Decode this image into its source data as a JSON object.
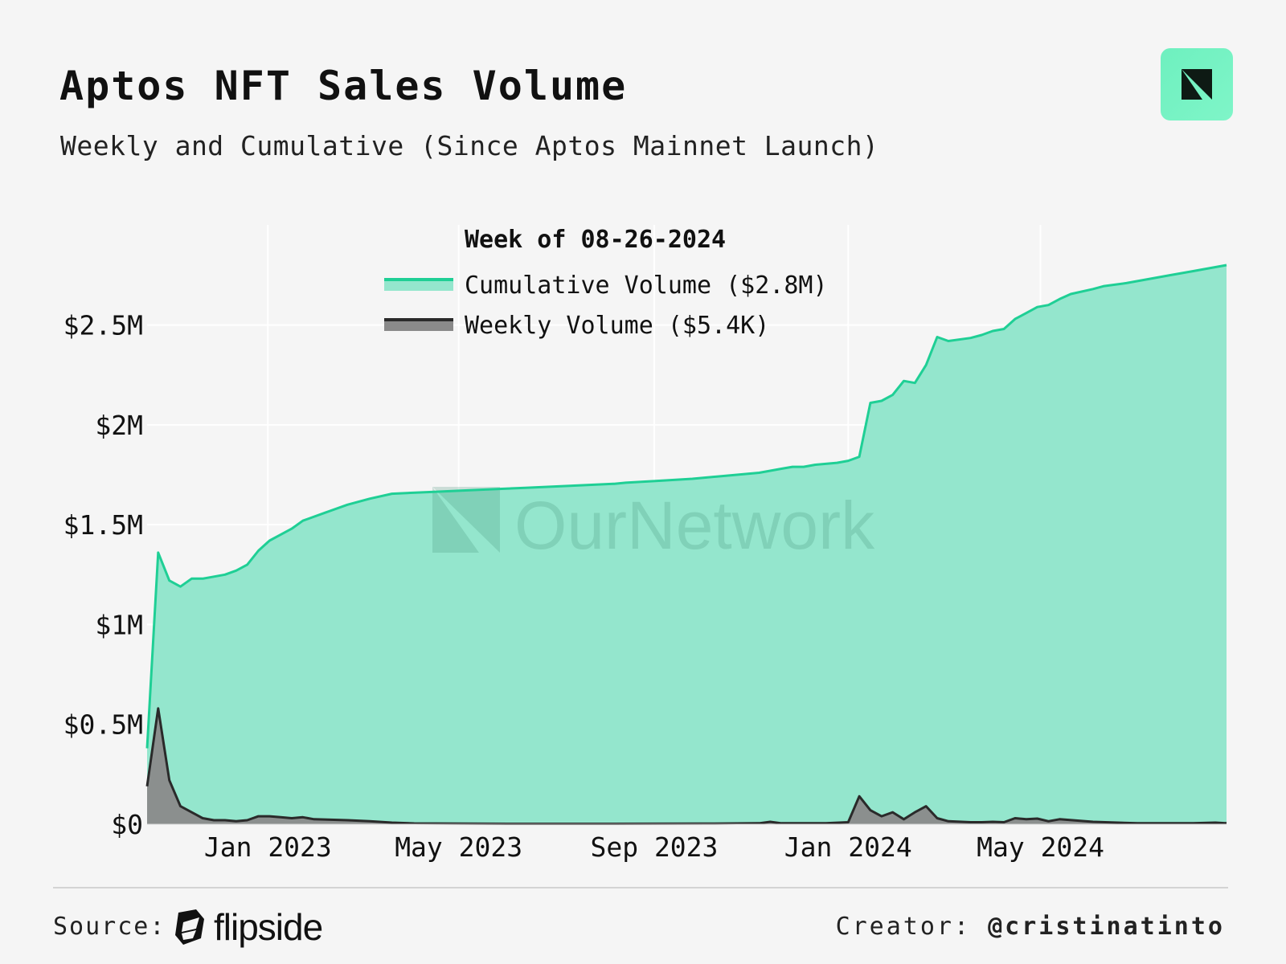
{
  "header": {
    "title": "Aptos NFT Sales Volume",
    "subtitle": "Weekly and Cumulative (Since Aptos Mainnet Launch)"
  },
  "logo": {
    "icon": "ournetwork-logo-icon",
    "color": "#6ef0bf"
  },
  "watermark": "OurNetwork",
  "footer": {
    "source_label": "Source:",
    "source_name": "flipside",
    "creator_label": "Creator:",
    "creator_handle": "@cristinatinto"
  },
  "chart_data": {
    "type": "area",
    "legend_title": "Week of 08-26-2024",
    "legend_position": "top-center",
    "grid": true,
    "x_start": "2022-10-17",
    "x_end": "2024-08-26",
    "xticks": [
      {
        "date": "2023-01-01",
        "label": "Jan 2023"
      },
      {
        "date": "2023-05-01",
        "label": "May 2023"
      },
      {
        "date": "2023-09-01",
        "label": "Sep 2023"
      },
      {
        "date": "2024-01-01",
        "label": "Jan 2024"
      },
      {
        "date": "2024-05-01",
        "label": "May 2024"
      }
    ],
    "yticks": [
      {
        "value": 0,
        "label": "$0"
      },
      {
        "value": 0.5,
        "label": "$0.5M"
      },
      {
        "value": 1,
        "label": "$1M"
      },
      {
        "value": 1.5,
        "label": "$1.5M"
      },
      {
        "value": 2,
        "label": "$2M"
      },
      {
        "value": 2.5,
        "label": "$2.5M"
      }
    ],
    "ylim": [
      0,
      2.95
    ],
    "y_unit": "$M",
    "series": [
      {
        "name": "Cumulative Volume",
        "legend_label": "Cumulative Volume ($2.8M)",
        "line_color": "#1fcf95",
        "fill_color": "#94e6cd",
        "points": [
          [
            "2022-10-17",
            0.38
          ],
          [
            "2022-10-24",
            1.36
          ],
          [
            "2022-10-31",
            1.22
          ],
          [
            "2022-11-07",
            1.19
          ],
          [
            "2022-11-14",
            1.23
          ],
          [
            "2022-11-21",
            1.23
          ],
          [
            "2022-11-28",
            1.24
          ],
          [
            "2022-12-05",
            1.25
          ],
          [
            "2022-12-12",
            1.27
          ],
          [
            "2022-12-19",
            1.3
          ],
          [
            "2022-12-26",
            1.37
          ],
          [
            "2023-01-02",
            1.42
          ],
          [
            "2023-01-09",
            1.45
          ],
          [
            "2023-01-16",
            1.48
          ],
          [
            "2023-01-23",
            1.52
          ],
          [
            "2023-02-06",
            1.56
          ],
          [
            "2023-02-20",
            1.6
          ],
          [
            "2023-03-06",
            1.63
          ],
          [
            "2023-03-20",
            1.655
          ],
          [
            "2023-04-17",
            1.665
          ],
          [
            "2023-05-15",
            1.675
          ],
          [
            "2023-06-12",
            1.685
          ],
          [
            "2023-07-10",
            1.695
          ],
          [
            "2023-08-07",
            1.705
          ],
          [
            "2023-08-14",
            1.71
          ],
          [
            "2023-09-04",
            1.72
          ],
          [
            "2023-09-25",
            1.73
          ],
          [
            "2023-10-16",
            1.745
          ],
          [
            "2023-11-06",
            1.76
          ],
          [
            "2023-11-20",
            1.78
          ],
          [
            "2023-11-27",
            1.79
          ],
          [
            "2023-12-04",
            1.79
          ],
          [
            "2023-12-11",
            1.8
          ],
          [
            "2023-12-25",
            1.81
          ],
          [
            "2024-01-01",
            1.82
          ],
          [
            "2024-01-08",
            1.84
          ],
          [
            "2024-01-15",
            2.11
          ],
          [
            "2024-01-22",
            2.12
          ],
          [
            "2024-01-29",
            2.15
          ],
          [
            "2024-02-05",
            2.22
          ],
          [
            "2024-02-12",
            2.21
          ],
          [
            "2024-02-19",
            2.3
          ],
          [
            "2024-02-26",
            2.44
          ],
          [
            "2024-03-04",
            2.42
          ],
          [
            "2024-03-18",
            2.435
          ],
          [
            "2024-03-25",
            2.45
          ],
          [
            "2024-04-01",
            2.47
          ],
          [
            "2024-04-08",
            2.48
          ],
          [
            "2024-04-15",
            2.53
          ],
          [
            "2024-04-22",
            2.56
          ],
          [
            "2024-04-29",
            2.59
          ],
          [
            "2024-05-06",
            2.6
          ],
          [
            "2024-05-13",
            2.63
          ],
          [
            "2024-05-20",
            2.655
          ],
          [
            "2024-06-03",
            2.68
          ],
          [
            "2024-06-10",
            2.695
          ],
          [
            "2024-06-24",
            2.71
          ],
          [
            "2024-07-08",
            2.73
          ],
          [
            "2024-07-22",
            2.75
          ],
          [
            "2024-08-05",
            2.77
          ],
          [
            "2024-08-12",
            2.78
          ],
          [
            "2024-08-19",
            2.79
          ],
          [
            "2024-08-26",
            2.8
          ]
        ]
      },
      {
        "name": "Weekly Volume",
        "legend_label": "Weekly Volume ($5.4K)",
        "line_color": "#2a2a2a",
        "fill_color": "#8a8a8a",
        "points": [
          [
            "2022-10-17",
            0.19
          ],
          [
            "2022-10-24",
            0.58
          ],
          [
            "2022-10-31",
            0.22
          ],
          [
            "2022-11-07",
            0.09
          ],
          [
            "2022-11-14",
            0.06
          ],
          [
            "2022-11-21",
            0.03
          ],
          [
            "2022-11-28",
            0.02
          ],
          [
            "2022-12-05",
            0.02
          ],
          [
            "2022-12-12",
            0.015
          ],
          [
            "2022-12-19",
            0.02
          ],
          [
            "2022-12-26",
            0.04
          ],
          [
            "2023-01-02",
            0.04
          ],
          [
            "2023-01-09",
            0.035
          ],
          [
            "2023-01-16",
            0.03
          ],
          [
            "2023-01-23",
            0.035
          ],
          [
            "2023-01-30",
            0.025
          ],
          [
            "2023-02-20",
            0.02
          ],
          [
            "2023-03-06",
            0.015
          ],
          [
            "2023-03-20",
            0.008
          ],
          [
            "2023-04-03",
            0.004
          ],
          [
            "2023-05-01",
            0.003
          ],
          [
            "2023-06-01",
            0.002
          ],
          [
            "2023-08-01",
            0.002
          ],
          [
            "2023-10-02",
            0.003
          ],
          [
            "2023-11-06",
            0.005
          ],
          [
            "2023-11-13",
            0.012
          ],
          [
            "2023-11-20",
            0.005
          ],
          [
            "2023-12-18",
            0.005
          ],
          [
            "2024-01-01",
            0.01
          ],
          [
            "2024-01-08",
            0.14
          ],
          [
            "2024-01-15",
            0.07
          ],
          [
            "2024-01-22",
            0.04
          ],
          [
            "2024-01-29",
            0.06
          ],
          [
            "2024-02-05",
            0.025
          ],
          [
            "2024-02-12",
            0.06
          ],
          [
            "2024-02-19",
            0.09
          ],
          [
            "2024-02-26",
            0.03
          ],
          [
            "2024-03-04",
            0.015
          ],
          [
            "2024-03-18",
            0.01
          ],
          [
            "2024-03-25",
            0.01
          ],
          [
            "2024-04-01",
            0.012
          ],
          [
            "2024-04-08",
            0.01
          ],
          [
            "2024-04-15",
            0.03
          ],
          [
            "2024-04-22",
            0.025
          ],
          [
            "2024-04-29",
            0.028
          ],
          [
            "2024-05-06",
            0.015
          ],
          [
            "2024-05-13",
            0.025
          ],
          [
            "2024-06-03",
            0.012
          ],
          [
            "2024-07-01",
            0.005
          ],
          [
            "2024-08-05",
            0.005
          ],
          [
            "2024-08-19",
            0.008
          ],
          [
            "2024-08-26",
            0.005
          ]
        ]
      }
    ]
  }
}
